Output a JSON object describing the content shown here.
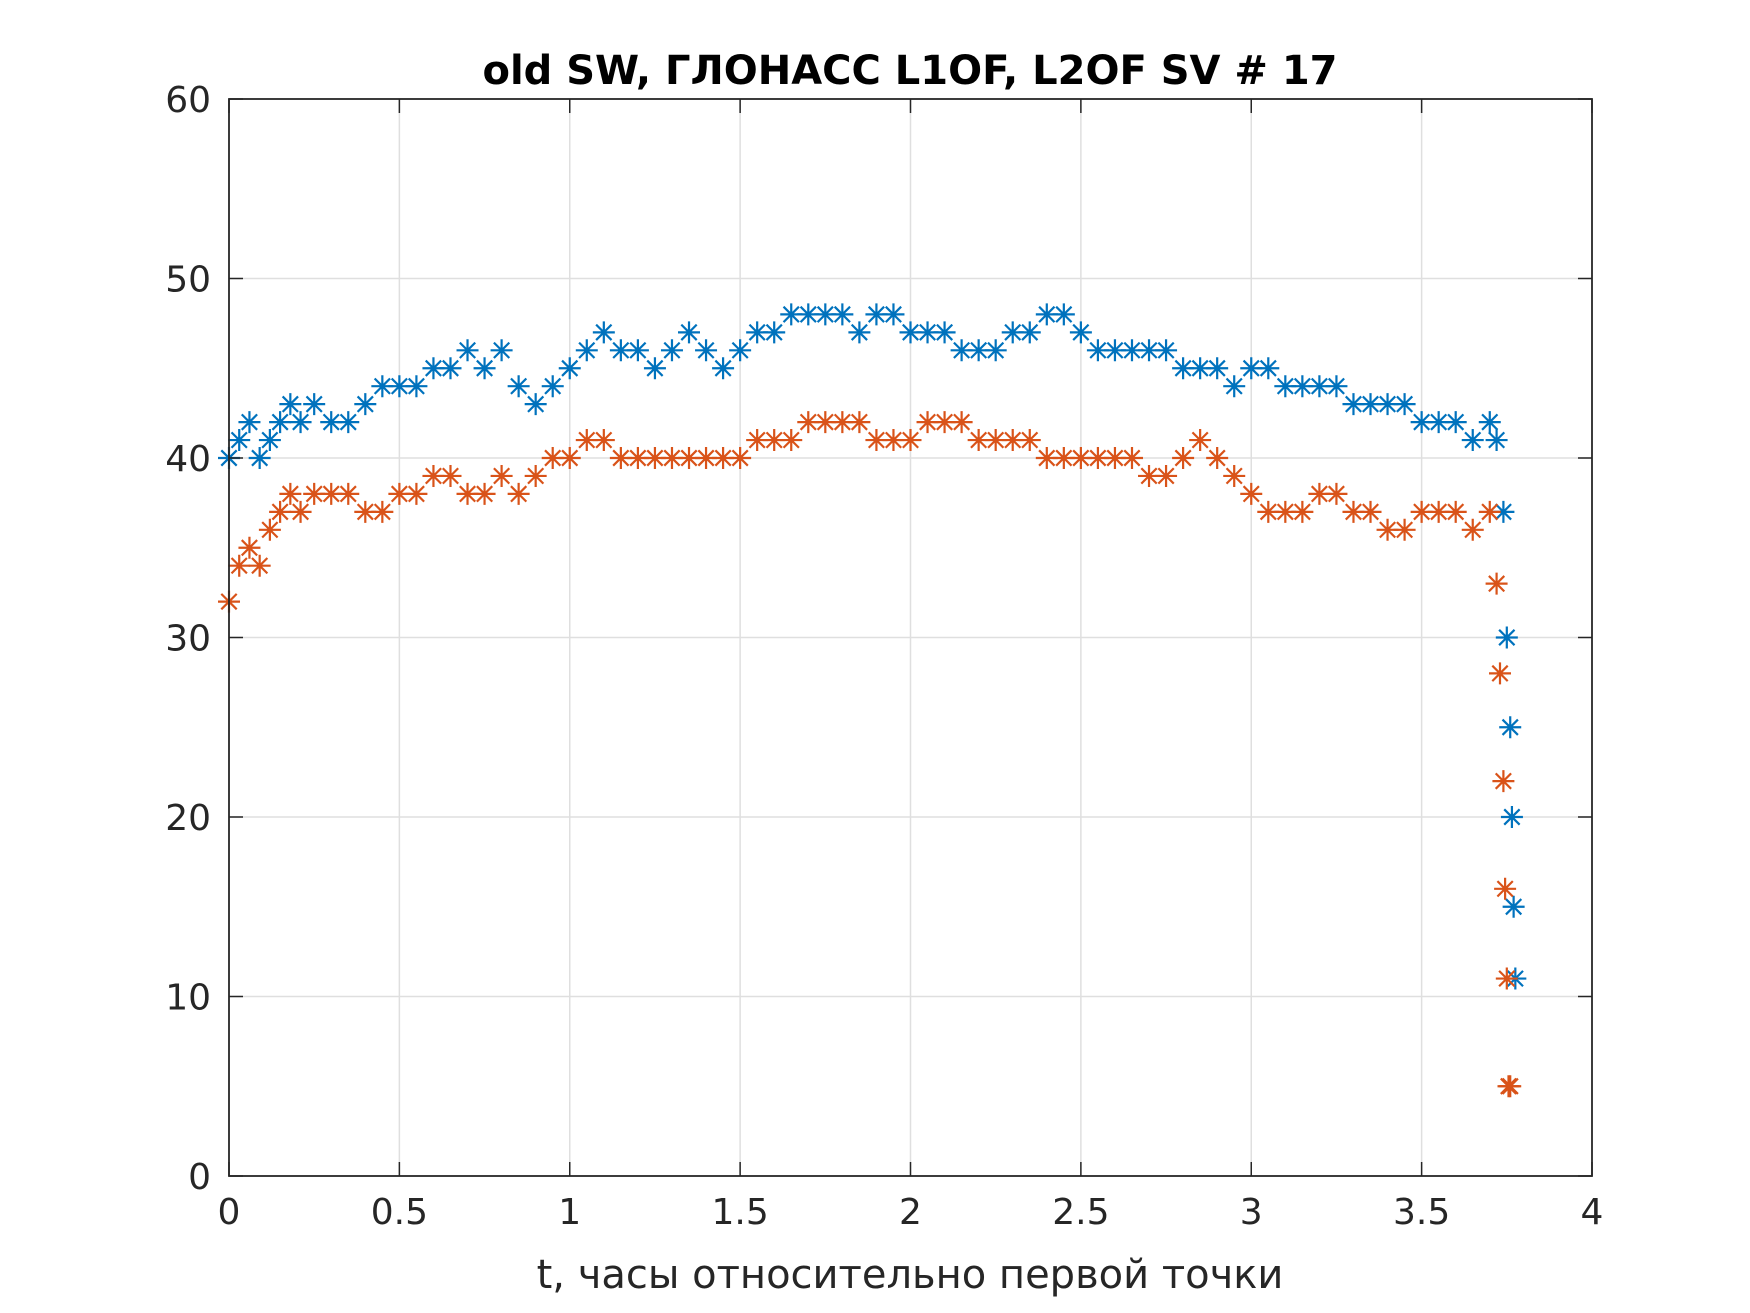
{
  "chart_data": {
    "type": "scatter",
    "title": "old SW, ГЛОНАСС L1OF, L2OF SV # 17",
    "xlabel": "t, часы относительно первой точки",
    "ylabel": "",
    "xlim": [
      0,
      4
    ],
    "ylim": [
      0,
      60
    ],
    "xticks": [
      0,
      0.5,
      1,
      1.5,
      2,
      2.5,
      3,
      3.5,
      4
    ],
    "xtick_labels": [
      "0",
      "0.5",
      "1",
      "1.5",
      "2",
      "2.5",
      "3",
      "3.5",
      "4"
    ],
    "yticks": [
      0,
      10,
      20,
      30,
      40,
      50,
      60
    ],
    "ytick_labels": [
      "0",
      "10",
      "20",
      "30",
      "40",
      "50",
      "60"
    ],
    "grid": true,
    "marker": "asterisk",
    "series": [
      {
        "name": "L1OF",
        "color": "#0072BD",
        "x": [
          0.0,
          0.03,
          0.06,
          0.09,
          0.12,
          0.15,
          0.18,
          0.21,
          0.25,
          0.3,
          0.35,
          0.4,
          0.45,
          0.5,
          0.55,
          0.6,
          0.65,
          0.7,
          0.75,
          0.8,
          0.85,
          0.9,
          0.95,
          1.0,
          1.05,
          1.1,
          1.15,
          1.2,
          1.25,
          1.3,
          1.35,
          1.4,
          1.45,
          1.5,
          1.55,
          1.6,
          1.65,
          1.7,
          1.75,
          1.8,
          1.85,
          1.9,
          1.95,
          2.0,
          2.05,
          2.1,
          2.15,
          2.2,
          2.25,
          2.3,
          2.35,
          2.4,
          2.45,
          2.5,
          2.55,
          2.6,
          2.65,
          2.7,
          2.75,
          2.8,
          2.85,
          2.9,
          2.95,
          3.0,
          3.05,
          3.1,
          3.15,
          3.2,
          3.25,
          3.3,
          3.35,
          3.4,
          3.45,
          3.5,
          3.55,
          3.6,
          3.65,
          3.7,
          3.72,
          3.74,
          3.75,
          3.76,
          3.765,
          3.77,
          3.775
        ],
        "y": [
          40,
          41,
          42,
          40,
          41,
          42,
          43,
          42,
          43,
          42,
          42,
          43,
          44,
          44,
          44,
          45,
          45,
          46,
          45,
          46,
          44,
          43,
          44,
          45,
          46,
          47,
          46,
          46,
          45,
          46,
          47,
          46,
          45,
          46,
          47,
          47,
          48,
          48,
          48,
          48,
          47,
          48,
          48,
          47,
          47,
          47,
          46,
          46,
          46,
          47,
          47,
          48,
          48,
          47,
          46,
          46,
          46,
          46,
          46,
          45,
          45,
          45,
          44,
          45,
          45,
          44,
          44,
          44,
          44,
          43,
          43,
          43,
          43,
          42,
          42,
          42,
          41,
          42,
          41,
          37,
          30,
          25,
          20,
          15,
          11
        ]
      },
      {
        "name": "L2OF",
        "color": "#D95319",
        "x": [
          0.0,
          0.03,
          0.06,
          0.09,
          0.12,
          0.15,
          0.18,
          0.21,
          0.25,
          0.3,
          0.35,
          0.4,
          0.45,
          0.5,
          0.55,
          0.6,
          0.65,
          0.7,
          0.75,
          0.8,
          0.85,
          0.9,
          0.95,
          1.0,
          1.05,
          1.1,
          1.15,
          1.2,
          1.25,
          1.3,
          1.35,
          1.4,
          1.45,
          1.5,
          1.55,
          1.6,
          1.65,
          1.7,
          1.75,
          1.8,
          1.85,
          1.9,
          1.95,
          2.0,
          2.05,
          2.1,
          2.15,
          2.2,
          2.25,
          2.3,
          2.35,
          2.4,
          2.45,
          2.5,
          2.55,
          2.6,
          2.65,
          2.7,
          2.75,
          2.8,
          2.85,
          2.9,
          2.95,
          3.0,
          3.05,
          3.1,
          3.15,
          3.2,
          3.25,
          3.3,
          3.35,
          3.4,
          3.45,
          3.5,
          3.55,
          3.6,
          3.65,
          3.7,
          3.72,
          3.73,
          3.74,
          3.745,
          3.75,
          3.755,
          3.76
        ],
        "y": [
          32,
          34,
          35,
          34,
          36,
          37,
          38,
          37,
          38,
          38,
          38,
          37,
          37,
          38,
          38,
          39,
          39,
          38,
          38,
          39,
          38,
          39,
          40,
          40,
          41,
          41,
          40,
          40,
          40,
          40,
          40,
          40,
          40,
          40,
          41,
          41,
          41,
          42,
          42,
          42,
          42,
          41,
          41,
          41,
          42,
          42,
          42,
          41,
          41,
          41,
          41,
          40,
          40,
          40,
          40,
          40,
          40,
          39,
          39,
          40,
          41,
          40,
          39,
          38,
          37,
          37,
          37,
          38,
          38,
          37,
          37,
          36,
          36,
          37,
          37,
          37,
          36,
          37,
          33,
          28,
          22,
          16,
          11,
          5,
          5
        ]
      }
    ]
  }
}
